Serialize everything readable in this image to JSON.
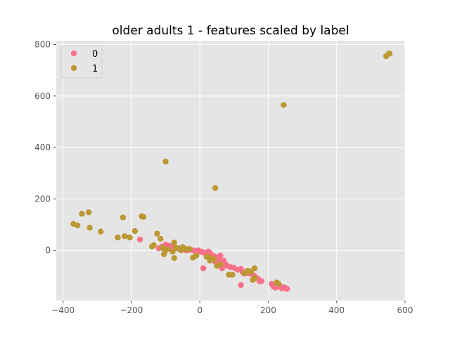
{
  "chart_data": {
    "type": "scatter",
    "title": "older adults 1 - features scaled by label",
    "xlabel": "",
    "ylabel": "",
    "xlim": [
      -420,
      600
    ],
    "ylim": [
      -195,
      815
    ],
    "x_ticks": [
      -400,
      -200,
      0,
      200,
      400,
      600
    ],
    "y_ticks": [
      0,
      200,
      400,
      600,
      800
    ],
    "grid": true,
    "legend_position": "top-left",
    "series": [
      {
        "name": "0",
        "color": "#f77189",
        "points": [
          [
            -220,
            55
          ],
          [
            -175,
            42
          ],
          [
            -120,
            8
          ],
          [
            -110,
            15
          ],
          [
            -100,
            22
          ],
          [
            -90,
            18
          ],
          [
            -80,
            12
          ],
          [
            -70,
            8
          ],
          [
            -60,
            5
          ],
          [
            -50,
            3
          ],
          [
            -40,
            0
          ],
          [
            -30,
            2
          ],
          [
            -20,
            0
          ],
          [
            -10,
            -2
          ],
          [
            0,
            -4
          ],
          [
            5,
            -6
          ],
          [
            10,
            -8
          ],
          [
            15,
            -10
          ],
          [
            20,
            -12
          ],
          [
            25,
            -15
          ],
          [
            30,
            -18
          ],
          [
            35,
            -20
          ],
          [
            40,
            -22
          ],
          [
            45,
            -25
          ],
          [
            50,
            -30
          ],
          [
            55,
            -35
          ],
          [
            60,
            -38
          ],
          [
            65,
            -45
          ],
          [
            70,
            -50
          ],
          [
            75,
            -55
          ],
          [
            60,
            -20
          ],
          [
            70,
            -40
          ],
          [
            10,
            -70
          ],
          [
            30,
            -10
          ],
          [
            80,
            -60
          ],
          [
            90,
            -65
          ],
          [
            100,
            -68
          ],
          [
            110,
            -75
          ],
          [
            120,
            -72
          ],
          [
            130,
            -85
          ],
          [
            140,
            -88
          ],
          [
            150,
            -92
          ],
          [
            160,
            -100
          ],
          [
            170,
            -110
          ],
          [
            175,
            -120
          ],
          [
            180,
            -120
          ],
          [
            120,
            -135
          ],
          [
            125,
            -85
          ],
          [
            130,
            -90
          ],
          [
            210,
            -130
          ],
          [
            215,
            -140
          ],
          [
            220,
            -145
          ],
          [
            225,
            -142
          ],
          [
            230,
            -138
          ],
          [
            235,
            -140
          ],
          [
            240,
            -148
          ],
          [
            245,
            -144
          ],
          [
            250,
            -146
          ],
          [
            255,
            -150
          ],
          [
            -5,
            0
          ],
          [
            -15,
            -3
          ],
          [
            25,
            -5
          ],
          [
            35,
            -30
          ],
          [
            45,
            -45
          ],
          [
            55,
            -50
          ],
          [
            65,
            -70
          ],
          [
            -95,
            15
          ],
          [
            -85,
            10
          ]
        ]
      },
      {
        "name": "1",
        "color": "#bb9832",
        "points": [
          [
            545,
            755
          ],
          [
            553,
            765
          ],
          [
            555,
            765
          ],
          [
            245,
            565
          ],
          [
            -100,
            345
          ],
          [
            45,
            242
          ],
          [
            -370,
            103
          ],
          [
            -358,
            97
          ],
          [
            -345,
            142
          ],
          [
            -325,
            148
          ],
          [
            -322,
            88
          ],
          [
            -290,
            73
          ],
          [
            -240,
            50
          ],
          [
            -225,
            128
          ],
          [
            -220,
            55
          ],
          [
            -205,
            50
          ],
          [
            -190,
            75
          ],
          [
            -170,
            132
          ],
          [
            -165,
            130
          ],
          [
            -140,
            15
          ],
          [
            -135,
            20
          ],
          [
            -125,
            65
          ],
          [
            -115,
            45
          ],
          [
            -110,
            10
          ],
          [
            -105,
            -15
          ],
          [
            -100,
            0
          ],
          [
            -95,
            5
          ],
          [
            -80,
            -5
          ],
          [
            -75,
            30
          ],
          [
            -75,
            -30
          ],
          [
            -70,
            10
          ],
          [
            -60,
            8
          ],
          [
            -55,
            0
          ],
          [
            -50,
            12
          ],
          [
            -40,
            5
          ],
          [
            -30,
            5
          ],
          [
            -20,
            -28
          ],
          [
            -10,
            -20
          ],
          [
            20,
            -25
          ],
          [
            30,
            -40
          ],
          [
            35,
            -30
          ],
          [
            40,
            -35
          ],
          [
            50,
            -60
          ],
          [
            60,
            -55
          ],
          [
            85,
            -95
          ],
          [
            95,
            -95
          ],
          [
            130,
            -90
          ],
          [
            135,
            -85
          ],
          [
            140,
            -80
          ],
          [
            150,
            -82
          ],
          [
            155,
            -115
          ],
          [
            160,
            -70
          ],
          [
            160,
            -108
          ],
          [
            225,
            -125
          ],
          [
            230,
            -130
          ]
        ]
      }
    ]
  }
}
